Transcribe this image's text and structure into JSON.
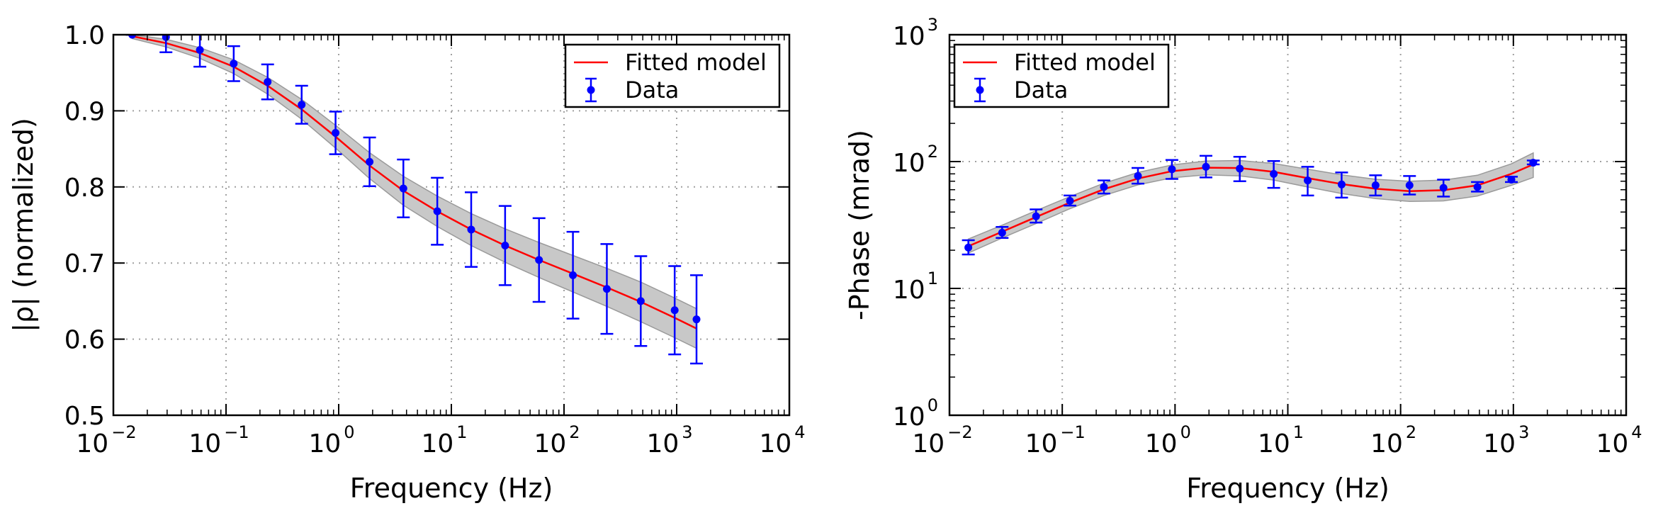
{
  "chart_data": [
    {
      "type": "line",
      "xlabel": "Frequency (Hz)",
      "ylabel": "|ρ| (normalized)",
      "xscale": "log",
      "yscale": "linear",
      "xlim": [
        0.01,
        10000
      ],
      "ylim": [
        0.5,
        1.0
      ],
      "grid": true,
      "legend_position": "top-right",
      "x_ticks": [
        {
          "base": "10",
          "exp": "−2"
        },
        {
          "base": "10",
          "exp": "−1"
        },
        {
          "base": "10",
          "exp": "0"
        },
        {
          "base": "10",
          "exp": "1"
        },
        {
          "base": "10",
          "exp": "2"
        },
        {
          "base": "10",
          "exp": "3"
        },
        {
          "base": "10",
          "exp": "4"
        }
      ],
      "y_ticks": [
        "0.5",
        "0.6",
        "0.7",
        "0.8",
        "0.9",
        "1.0"
      ],
      "legend": [
        "Fitted model",
        "Data"
      ],
      "series": [
        {
          "name": "Fitted model",
          "kind": "line",
          "color": "#ff0000",
          "x": [
            0.0147,
            0.0293,
            0.0586,
            0.117,
            0.234,
            0.469,
            0.938,
            1.88,
            3.75,
            7.5,
            15.0,
            30.0,
            60.0,
            120.0,
            240.0,
            480.0,
            960.0,
            1500.0
          ],
          "y": [
            0.998,
            0.989,
            0.976,
            0.958,
            0.933,
            0.902,
            0.866,
            0.828,
            0.795,
            0.768,
            0.744,
            0.723,
            0.704,
            0.686,
            0.668,
            0.649,
            0.628,
            0.614
          ],
          "band_lower": [
            0.995,
            0.984,
            0.969,
            0.949,
            0.922,
            0.889,
            0.851,
            0.811,
            0.776,
            0.748,
            0.723,
            0.701,
            0.681,
            0.662,
            0.643,
            0.623,
            0.602,
            0.588
          ],
          "band_upper": [
            1.0,
            0.994,
            0.983,
            0.967,
            0.944,
            0.915,
            0.881,
            0.845,
            0.814,
            0.788,
            0.765,
            0.745,
            0.727,
            0.71,
            0.693,
            0.675,
            0.654,
            0.64
          ]
        },
        {
          "name": "Data",
          "kind": "errorbar",
          "color": "#0000ff",
          "x": [
            0.0147,
            0.0293,
            0.0586,
            0.117,
            0.234,
            0.469,
            0.938,
            1.88,
            3.75,
            7.5,
            15.0,
            30.0,
            60.0,
            120.0,
            240.0,
            480.0,
            960.0,
            1500.0
          ],
          "y": [
            1.0,
            0.997,
            0.98,
            0.962,
            0.938,
            0.908,
            0.871,
            0.833,
            0.798,
            0.768,
            0.744,
            0.723,
            0.704,
            0.684,
            0.666,
            0.65,
            0.638,
            0.626
          ],
          "err": [
            0.0,
            0.02,
            0.022,
            0.023,
            0.023,
            0.025,
            0.028,
            0.032,
            0.038,
            0.044,
            0.049,
            0.052,
            0.055,
            0.057,
            0.059,
            0.059,
            0.058,
            0.058
          ]
        }
      ]
    },
    {
      "type": "line",
      "xlabel": "Frequency (Hz)",
      "ylabel": "-Phase (mrad)",
      "xscale": "log",
      "yscale": "log",
      "xlim": [
        0.01,
        10000
      ],
      "ylim": [
        1,
        1000
      ],
      "grid": true,
      "legend_position": "top-left",
      "x_ticks": [
        {
          "base": "10",
          "exp": "−2"
        },
        {
          "base": "10",
          "exp": "−1"
        },
        {
          "base": "10",
          "exp": "0"
        },
        {
          "base": "10",
          "exp": "1"
        },
        {
          "base": "10",
          "exp": "2"
        },
        {
          "base": "10",
          "exp": "3"
        },
        {
          "base": "10",
          "exp": "4"
        }
      ],
      "y_ticks": [
        {
          "base": "10",
          "exp": "0"
        },
        {
          "base": "10",
          "exp": "1"
        },
        {
          "base": "10",
          "exp": "2"
        },
        {
          "base": "10",
          "exp": "3"
        }
      ],
      "legend": [
        "Fitted model",
        "Data"
      ],
      "series": [
        {
          "name": "Fitted model",
          "kind": "line",
          "color": "#ff0000",
          "x": [
            0.0147,
            0.0293,
            0.0586,
            0.117,
            0.234,
            0.469,
            0.938,
            1.88,
            3.75,
            7.5,
            15.0,
            30.0,
            60.0,
            120.0,
            240.0,
            480.0,
            960.0,
            1500.0
          ],
          "y": [
            21.5,
            28.0,
            36.5,
            47.5,
            60.5,
            73.5,
            84.0,
            89.5,
            89.0,
            83.0,
            74.0,
            66.5,
            61.0,
            58.5,
            59.5,
            65.0,
            80.0,
            95.0
          ],
          "band_lower": [
            19.0,
            25.0,
            32.5,
            42.5,
            54.0,
            65.5,
            74.5,
            78.5,
            77.0,
            71.5,
            63.0,
            56.0,
            51.0,
            48.5,
            49.0,
            53.5,
            65.0,
            75.0
          ],
          "band_upper": [
            24.5,
            31.5,
            41.0,
            53.0,
            67.5,
            82.0,
            94.0,
            101.0,
            102.0,
            96.5,
            87.0,
            78.5,
            72.5,
            70.0,
            71.5,
            78.0,
            96.0,
            117.0
          ]
        },
        {
          "name": "Data",
          "kind": "errorbar",
          "color": "#0000ff",
          "x": [
            0.0147,
            0.0293,
            0.0586,
            0.117,
            0.234,
            0.469,
            0.938,
            1.88,
            3.75,
            7.5,
            15.0,
            30.0,
            60.0,
            120.0,
            240.0,
            480.0,
            960.0,
            1500.0
          ],
          "y": [
            21.0,
            27.5,
            37.0,
            49.0,
            63.0,
            77.0,
            87.0,
            91.0,
            88.0,
            80.0,
            71.0,
            66.0,
            65.0,
            65.0,
            62.0,
            63.0,
            72.0,
            98.0
          ],
          "err_low": [
            2.5,
            2.5,
            4.0,
            4.0,
            7.0,
            10.0,
            14.0,
            16.0,
            18.0,
            18.0,
            17.0,
            14.0,
            11.0,
            10.0,
            9.0,
            5.0,
            3.0,
            3.0
          ],
          "err_high": [
            3.0,
            3.0,
            5.0,
            5.0,
            8.0,
            12.0,
            16.0,
            20.0,
            21.0,
            21.0,
            20.0,
            16.0,
            13.0,
            12.0,
            10.0,
            6.0,
            4.0,
            4.0
          ]
        }
      ]
    }
  ]
}
